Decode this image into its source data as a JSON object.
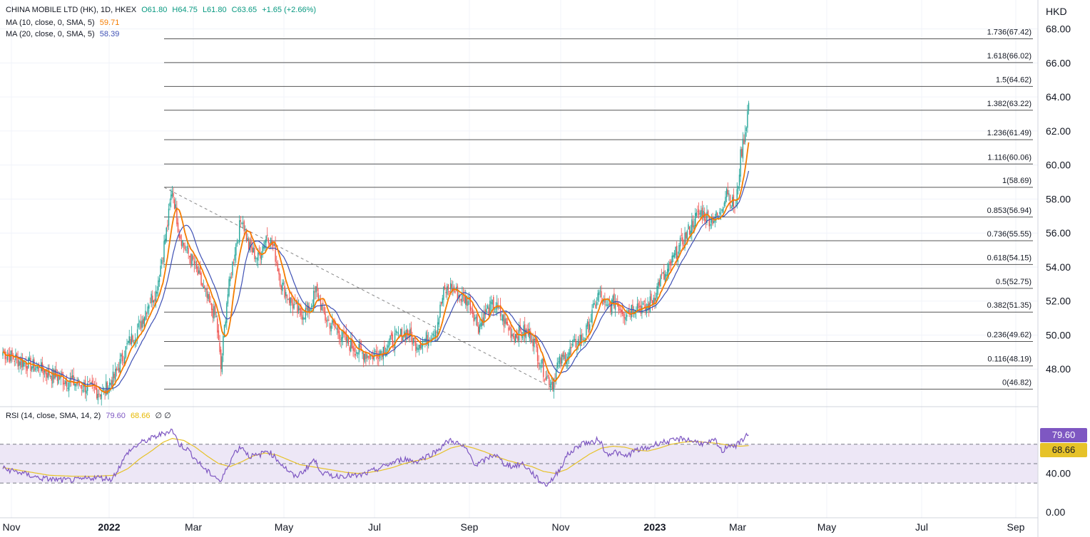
{
  "header": {
    "symbol": "CHINA MOBILE LTD (HK), 1D, HKEX",
    "open": "O61.80",
    "high": "H64.75",
    "low": "L61.80",
    "close": "C63.65",
    "change": "+1.65 (+2.66%)",
    "ma10_label": "MA (10, close, 0, SMA, 5)",
    "ma10_value": "59.71",
    "ma20_label": "MA (20, close, 0, SMA, 5)",
    "ma20_value": "58.39",
    "rsi_label": "RSI (14, close, SMA, 14, 2)",
    "rsi_value": "79.60",
    "rsi_ma_value": "68.66",
    "rsi_extra": "∅ ∅"
  },
  "badges": {
    "rsi": "79.60",
    "rsi_ma": "68.66"
  },
  "colors": {
    "up": "#26a69a",
    "down": "#ef5350",
    "ma10": "#f57c00",
    "ma20": "#3f51b5",
    "rsi": "#7e57c2",
    "rsi_ma": "#e6c229",
    "fib": "#555555",
    "rsi_band": "#ede7f6"
  },
  "chart_data": [
    {
      "type": "candlestick",
      "currency_label": "HKD",
      "ylim": [
        46.0,
        69.2
      ],
      "y_ticks": [
        "48.00",
        "50.00",
        "52.00",
        "54.00",
        "56.00",
        "58.00",
        "60.00",
        "62.00",
        "64.00",
        "66.00",
        "68.00"
      ],
      "x_ticks": [
        "Nov",
        "2022",
        "Mar",
        "May",
        "Jul",
        "Sep",
        "Nov",
        "2023",
        "Mar",
        "May",
        "Jul",
        "Sep"
      ],
      "fib_levels": [
        {
          "ratio": "0",
          "value": 46.82,
          "label": "0(46.82)"
        },
        {
          "ratio": "0.116",
          "value": 48.19,
          "label": "0.116(48.19)"
        },
        {
          "ratio": "0.236",
          "value": 49.62,
          "label": "0.236(49.62)"
        },
        {
          "ratio": "0.382",
          "value": 51.35,
          "label": "0.382(51.35)"
        },
        {
          "ratio": "0.5",
          "value": 52.75,
          "label": "0.5(52.75)"
        },
        {
          "ratio": "0.618",
          "value": 54.15,
          "label": "0.618(54.15)"
        },
        {
          "ratio": "0.736",
          "value": 55.55,
          "label": "0.736(55.55)"
        },
        {
          "ratio": "0.853",
          "value": 56.94,
          "label": "0.853(56.94)"
        },
        {
          "ratio": "1",
          "value": 58.69,
          "label": "1(58.69)"
        },
        {
          "ratio": "1.116",
          "value": 60.06,
          "label": "1.116(60.06)"
        },
        {
          "ratio": "1.236",
          "value": 61.49,
          "label": "1.236(61.49)"
        },
        {
          "ratio": "1.382",
          "value": 63.22,
          "label": "1.382(63.22)"
        },
        {
          "ratio": "1.5",
          "value": 64.62,
          "label": "1.5(64.62)"
        },
        {
          "ratio": "1.618",
          "value": 66.02,
          "label": "1.618(66.02)"
        },
        {
          "ratio": "1.736",
          "value": 67.42,
          "label": "1.736(67.42)"
        }
      ],
      "trendline": [
        [
          0.0,
          58.69
        ],
        [
          1.0,
          46.82
        ]
      ],
      "price_path": [
        [
          0,
          49.0
        ],
        [
          14,
          48.5
        ],
        [
          32,
          48.0
        ],
        [
          52,
          47.4
        ],
        [
          70,
          47.0
        ],
        [
          86,
          46.6
        ],
        [
          96,
          47.5
        ],
        [
          108,
          49.5
        ],
        [
          118,
          50.5
        ],
        [
          126,
          52.0
        ],
        [
          132,
          52.5
        ],
        [
          142,
          56.5
        ],
        [
          146,
          58.69
        ],
        [
          152,
          56.0
        ],
        [
          158,
          55.0
        ],
        [
          164,
          54.3
        ],
        [
          170,
          53.2
        ],
        [
          178,
          51.8
        ],
        [
          184,
          51.0
        ],
        [
          188,
          48.0
        ],
        [
          193,
          52.0
        ],
        [
          200,
          55.0
        ],
        [
          206,
          57.0
        ],
        [
          212,
          55.2
        ],
        [
          220,
          54.5
        ],
        [
          228,
          56.0
        ],
        [
          234,
          55.0
        ],
        [
          240,
          53.0
        ],
        [
          248,
          52.0
        ],
        [
          256,
          51.2
        ],
        [
          264,
          51.5
        ],
        [
          270,
          52.6
        ],
        [
          278,
          51.0
        ],
        [
          288,
          50.3
        ],
        [
          298,
          49.5
        ],
        [
          308,
          49.0
        ],
        [
          318,
          48.8
        ],
        [
          328,
          49.2
        ],
        [
          338,
          49.8
        ],
        [
          348,
          50.2
        ],
        [
          356,
          49.5
        ],
        [
          366,
          49.8
        ],
        [
          374,
          50.5
        ],
        [
          380,
          52.5
        ],
        [
          386,
          52.8
        ],
        [
          394,
          52.3
        ],
        [
          402,
          52.0
        ],
        [
          410,
          50.5
        ],
        [
          418,
          51.5
        ],
        [
          424,
          51.8
        ],
        [
          432,
          50.8
        ],
        [
          440,
          50.0
        ],
        [
          448,
          50.2
        ],
        [
          456,
          50.0
        ],
        [
          462,
          48.7
        ],
        [
          468,
          47.6
        ],
        [
          474,
          47.2
        ],
        [
          478,
          48.2
        ],
        [
          486,
          48.8
        ],
        [
          494,
          49.5
        ],
        [
          502,
          50.0
        ],
        [
          508,
          51.2
        ],
        [
          514,
          52.5
        ],
        [
          520,
          51.5
        ],
        [
          528,
          52.0
        ],
        [
          536,
          51.3
        ],
        [
          546,
          51.8
        ],
        [
          554,
          51.5
        ],
        [
          562,
          52.3
        ],
        [
          566,
          53.2
        ],
        [
          572,
          53.5
        ],
        [
          578,
          54.5
        ],
        [
          584,
          55.3
        ],
        [
          590,
          56.0
        ],
        [
          596,
          56.8
        ],
        [
          602,
          57.2
        ],
        [
          610,
          56.8
        ],
        [
          618,
          57.0
        ],
        [
          624,
          58.7
        ],
        [
          628,
          57.8
        ],
        [
          632,
          57.5
        ],
        [
          636,
          60.5
        ],
        [
          640,
          62.0
        ],
        [
          643,
          63.65
        ]
      ]
    },
    {
      "type": "line",
      "name": "RSI",
      "ylim": [
        0,
        100
      ],
      "y_ticks": [
        "0.00",
        "40.00"
      ],
      "levels": [
        30,
        50,
        70
      ],
      "rsi_path": [
        [
          0,
          45
        ],
        [
          14,
          41
        ],
        [
          32,
          35
        ],
        [
          50,
          33
        ],
        [
          64,
          33
        ],
        [
          80,
          36
        ],
        [
          94,
          34
        ],
        [
          108,
          62
        ],
        [
          118,
          71
        ],
        [
          126,
          75
        ],
        [
          132,
          78
        ],
        [
          140,
          82
        ],
        [
          146,
          85
        ],
        [
          152,
          70
        ],
        [
          160,
          64
        ],
        [
          168,
          52
        ],
        [
          176,
          42
        ],
        [
          184,
          36
        ],
        [
          188,
          31
        ],
        [
          194,
          48
        ],
        [
          200,
          62
        ],
        [
          206,
          68
        ],
        [
          212,
          58
        ],
        [
          220,
          58
        ],
        [
          228,
          64
        ],
        [
          236,
          55
        ],
        [
          244,
          45
        ],
        [
          252,
          36
        ],
        [
          260,
          43
        ],
        [
          268,
          54
        ],
        [
          276,
          40
        ],
        [
          286,
          37
        ],
        [
          296,
          38
        ],
        [
          306,
          37
        ],
        [
          316,
          41
        ],
        [
          326,
          46
        ],
        [
          336,
          51
        ],
        [
          346,
          55
        ],
        [
          356,
          52
        ],
        [
          366,
          58
        ],
        [
          374,
          63
        ],
        [
          380,
          70
        ],
        [
          386,
          74
        ],
        [
          392,
          71
        ],
        [
          400,
          64
        ],
        [
          408,
          48
        ],
        [
          416,
          54
        ],
        [
          424,
          60
        ],
        [
          432,
          50
        ],
        [
          440,
          47
        ],
        [
          448,
          50
        ],
        [
          456,
          41
        ],
        [
          462,
          33
        ],
        [
          468,
          28
        ],
        [
          474,
          34
        ],
        [
          480,
          44
        ],
        [
          486,
          58
        ],
        [
          494,
          66
        ],
        [
          500,
          72
        ],
        [
          508,
          71
        ],
        [
          514,
          76
        ],
        [
          520,
          60
        ],
        [
          528,
          62
        ],
        [
          536,
          57
        ],
        [
          546,
          64
        ],
        [
          556,
          66
        ],
        [
          566,
          72
        ],
        [
          576,
          73
        ],
        [
          586,
          76
        ],
        [
          596,
          73
        ],
        [
          606,
          70
        ],
        [
          614,
          74
        ],
        [
          620,
          62
        ],
        [
          626,
          70
        ],
        [
          632,
          68
        ],
        [
          640,
          78
        ],
        [
          643,
          79.6
        ]
      ],
      "rsi_ma_path": [
        [
          0,
          46
        ],
        [
          20,
          42
        ],
        [
          40,
          38
        ],
        [
          60,
          37
        ],
        [
          80,
          37
        ],
        [
          96,
          38
        ],
        [
          108,
          45
        ],
        [
          118,
          55
        ],
        [
          128,
          63
        ],
        [
          138,
          72
        ],
        [
          146,
          76
        ],
        [
          156,
          74
        ],
        [
          166,
          67
        ],
        [
          176,
          58
        ],
        [
          186,
          50
        ],
        [
          196,
          47
        ],
        [
          206,
          52
        ],
        [
          216,
          58
        ],
        [
          226,
          61
        ],
        [
          236,
          59
        ],
        [
          246,
          54
        ],
        [
          256,
          49
        ],
        [
          266,
          47
        ],
        [
          276,
          45
        ],
        [
          286,
          43
        ],
        [
          296,
          41
        ],
        [
          306,
          40
        ],
        [
          316,
          41
        ],
        [
          326,
          43
        ],
        [
          336,
          46
        ],
        [
          346,
          50
        ],
        [
          356,
          53
        ],
        [
          366,
          55
        ],
        [
          376,
          60
        ],
        [
          386,
          66
        ],
        [
          396,
          69
        ],
        [
          406,
          66
        ],
        [
          416,
          62
        ],
        [
          426,
          57
        ],
        [
          436,
          53
        ],
        [
          446,
          50
        ],
        [
          456,
          47
        ],
        [
          466,
          42
        ],
        [
          476,
          40
        ],
        [
          486,
          44
        ],
        [
          496,
          52
        ],
        [
          506,
          60
        ],
        [
          516,
          66
        ],
        [
          526,
          68
        ],
        [
          536,
          67
        ],
        [
          546,
          64
        ],
        [
          556,
          63
        ],
        [
          566,
          66
        ],
        [
          576,
          70
        ],
        [
          586,
          72
        ],
        [
          596,
          73
        ],
        [
          606,
          72
        ],
        [
          616,
          71
        ],
        [
          626,
          69
        ],
        [
          636,
          68
        ],
        [
          643,
          68.66
        ]
      ]
    }
  ]
}
